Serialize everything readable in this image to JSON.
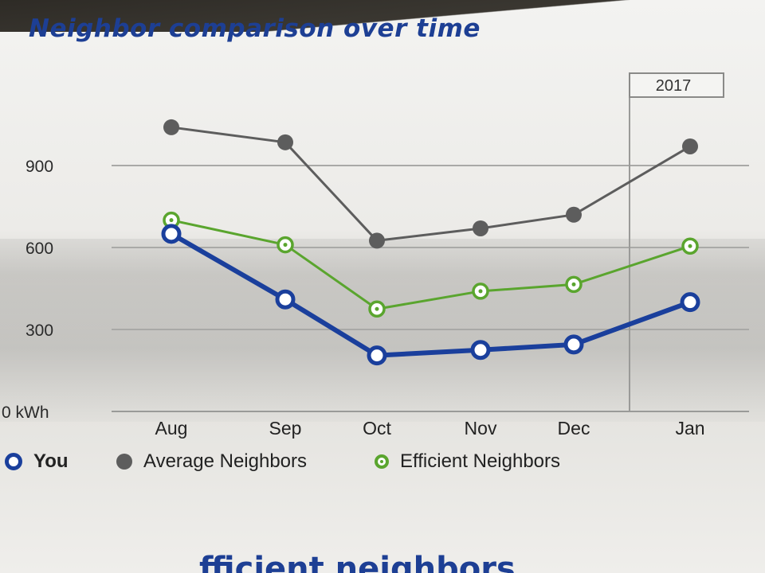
{
  "title": "Neighbor comparison over time",
  "year_marker": "2017",
  "footer_fragment": "fficient neighbors",
  "colors": {
    "you": "#1a3f9c",
    "average": "#5d5d5d",
    "efficient": "#5aa52e",
    "title": "#1d3f94"
  },
  "legend": {
    "you": "You",
    "average": "Average Neighbors",
    "efficient": "Efficient Neighbors"
  },
  "chart_data": {
    "type": "line",
    "title": "Neighbor comparison over time",
    "ylabel": "",
    "xlabel": "",
    "y_unit": "kWh",
    "ylim": [
      0,
      1050
    ],
    "yticks": [
      0,
      300,
      600,
      900
    ],
    "ytick_labels": [
      "0 kWh",
      "300",
      "600",
      "900"
    ],
    "grid": true,
    "legend_position": "bottom",
    "categories": [
      "Aug",
      "Sep",
      "Oct",
      "Nov",
      "Dec",
      "Jan"
    ],
    "annotation": {
      "label": "2017",
      "starts_at": "Jan"
    },
    "series": [
      {
        "name": "Average Neighbors",
        "key": "average",
        "values": [
          1040,
          985,
          625,
          670,
          720,
          970
        ]
      },
      {
        "name": "Efficient Neighbors",
        "key": "efficient",
        "values": [
          700,
          610,
          375,
          440,
          465,
          605
        ]
      },
      {
        "name": "You",
        "key": "you",
        "values": [
          650,
          410,
          205,
          225,
          245,
          400
        ]
      }
    ]
  }
}
